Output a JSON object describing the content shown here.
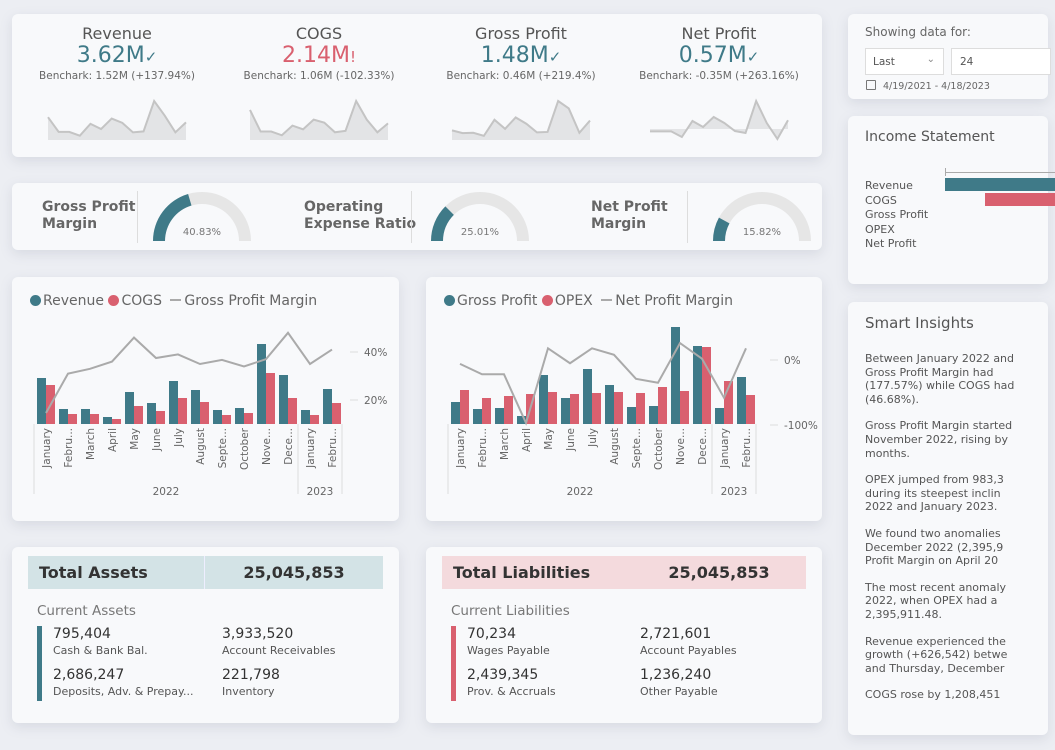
{
  "colors": {
    "teal": "#3f7a88",
    "red": "#d9606f",
    "grey": "#aaaaaa",
    "track": "#e6e6e6"
  },
  "kpis": [
    {
      "title": "Revenue",
      "value": "3.62M",
      "status_icon": "check-icon",
      "status": "✓",
      "benchmark": "Benchark: 1.52M (+137.94%)",
      "spark": [
        46,
        15,
        15,
        7,
        32,
        21,
        43,
        34,
        14,
        16,
        80,
        49,
        14,
        35
      ]
    },
    {
      "title": "COGS",
      "value": "2.14M",
      "status_icon": "alert-icon",
      "status": "!",
      "benchmark": "Benchark: 1.06M (-102.33%)",
      "spark": [
        39,
        10,
        10,
        5,
        18,
        13,
        26,
        22,
        9,
        11,
        51,
        26,
        9,
        21
      ]
    },
    {
      "title": "Gross Profit",
      "value": "1.48M",
      "status_icon": "check-icon",
      "status": "✓",
      "benchmark": "Benchark: 0.46M (+219.4%)",
      "spark": [
        22,
        15,
        16,
        8,
        49,
        26,
        55,
        39,
        17,
        18,
        97,
        78,
        16,
        47
      ]
    },
    {
      "title": "Net Profit",
      "value": "0.57M",
      "status_icon": "check-icon",
      "status": "✓",
      "benchmark": "Benchark: -0.35M (+263.16%)",
      "spark": [
        -6,
        -6,
        -6,
        -20,
        20,
        5,
        30,
        15,
        -5,
        -10,
        70,
        15,
        -25,
        22
      ]
    }
  ],
  "gauges": [
    {
      "label_1": "Gross Profit",
      "label_2": "Margin",
      "value": 40.83,
      "text": "40.83%"
    },
    {
      "label_1": "Operating",
      "label_2": "Expense Ratio",
      "value": 25.01,
      "text": "25.01%"
    },
    {
      "label_1": "Net Profit",
      "label_2": "Margin",
      "value": 15.82,
      "text": "15.82%"
    }
  ],
  "chart_data": [
    {
      "type": "bar",
      "categories": [
        "January",
        "Febru...",
        "March",
        "April",
        "May",
        "June",
        "July",
        "August",
        "Septe...",
        "October",
        "Nove...",
        "Dece...",
        "January",
        "Febru..."
      ],
      "years": [
        {
          "label": "2022",
          "months": 12
        },
        {
          "label": "2023",
          "months": 2
        }
      ],
      "series": [
        {
          "name": "Revenue",
          "type": "bar",
          "values": [
            46,
            15,
            15,
            7,
            32,
            21,
            43,
            34,
            14,
            16,
            80,
            49,
            14,
            35
          ]
        },
        {
          "name": "COGS",
          "type": "bar",
          "values": [
            39,
            10,
            10,
            5,
            18,
            13,
            26,
            22,
            9,
            11,
            51,
            26,
            9,
            21
          ]
        },
        {
          "name": "Gross Profit Margin",
          "type": "line",
          "axis": "right",
          "values": [
            14.6,
            31,
            33,
            36,
            46,
            37.5,
            39,
            35,
            36.7,
            34,
            37,
            48,
            35,
            41
          ]
        }
      ],
      "right_ticks": [
        "40%",
        "20%"
      ],
      "right_tick_values": [
        40,
        20
      ],
      "legend": "top-left"
    },
    {
      "type": "bar",
      "categories": [
        "January",
        "Febru...",
        "March",
        "April",
        "May",
        "June",
        "July",
        "August",
        "Septe...",
        "October",
        "Nove...",
        "Dece...",
        "January",
        "Febru..."
      ],
      "years": [
        {
          "label": "2022",
          "months": 12
        },
        {
          "label": "2023",
          "months": 2
        }
      ],
      "series": [
        {
          "name": "Gross Profit",
          "type": "bar",
          "values": [
            22,
            15,
            16,
            8,
            49,
            26,
            55,
            39,
            17,
            18,
            97,
            78,
            16,
            47
          ]
        },
        {
          "name": "OPEX",
          "type": "bar",
          "values": [
            34,
            26,
            28,
            30,
            32,
            30,
            31,
            32,
            31,
            37,
            33,
            77,
            43,
            29
          ]
        },
        {
          "name": "Net Profit Margin",
          "type": "line",
          "axis": "right",
          "values": [
            -6,
            -22,
            -22,
            -97,
            18,
            -5,
            18,
            8,
            -29,
            -35,
            26,
            2,
            -58,
            18
          ]
        }
      ],
      "right_ticks": [
        "0%",
        "-100%"
      ],
      "right_tick_values": [
        0,
        -100
      ],
      "legend": "top-left"
    }
  ],
  "assets": {
    "title": "Total Assets",
    "total": "25,045,853",
    "subtitle": "Current Assets",
    "items": [
      {
        "value": "795,404",
        "label": "Cash & Bank Bal."
      },
      {
        "value": "3,933,520",
        "label": "Account Receivables"
      },
      {
        "value": "2,686,247",
        "label": "Deposits, Adv. & Prepay..."
      },
      {
        "value": "221,798",
        "label": "Inventory"
      }
    ]
  },
  "liabilities": {
    "title": "Total Liabilities",
    "total": "25,045,853",
    "subtitle": "Current Liabilities",
    "items": [
      {
        "value": "70,234",
        "label": "Wages Payable"
      },
      {
        "value": "2,721,601",
        "label": "Account Payables"
      },
      {
        "value": "2,439,345",
        "label": "Prov. & Accruals"
      },
      {
        "value": "1,236,240",
        "label": "Other Payable"
      }
    ]
  },
  "filter": {
    "label": "Showing data for:",
    "mode": "Last",
    "count": "24",
    "date_range": "4/19/2021 - 4/18/2023"
  },
  "income_statement": {
    "title": "Income Statement",
    "rows": [
      "Revenue",
      "COGS",
      "Gross Profit",
      "OPEX",
      "Net Profit"
    ]
  },
  "insights": {
    "title": "Smart Insights",
    "paragraphs": [
      [
        "Between January 2022 and",
        "Gross Profit Margin had",
        "(177.57%) while COGS had",
        "(46.68%)."
      ],
      [
        "Gross Profit Margin started",
        "November 2022, rising by",
        "months."
      ],
      [
        "OPEX jumped from 983,3",
        "during its steepest inclin",
        "2022 and January 2023."
      ],
      [
        "We found two anomalies",
        "December 2022 (2,395,9",
        "Profit Margin on April 20"
      ],
      [
        "The most recent anomaly",
        "2022, when OPEX had a",
        "2,395,911.48."
      ],
      [
        "Revenue experienced the",
        "growth (+626,542) betwe",
        "and Thursday, December"
      ],
      [
        "COGS rose by 1,208,451"
      ]
    ]
  }
}
